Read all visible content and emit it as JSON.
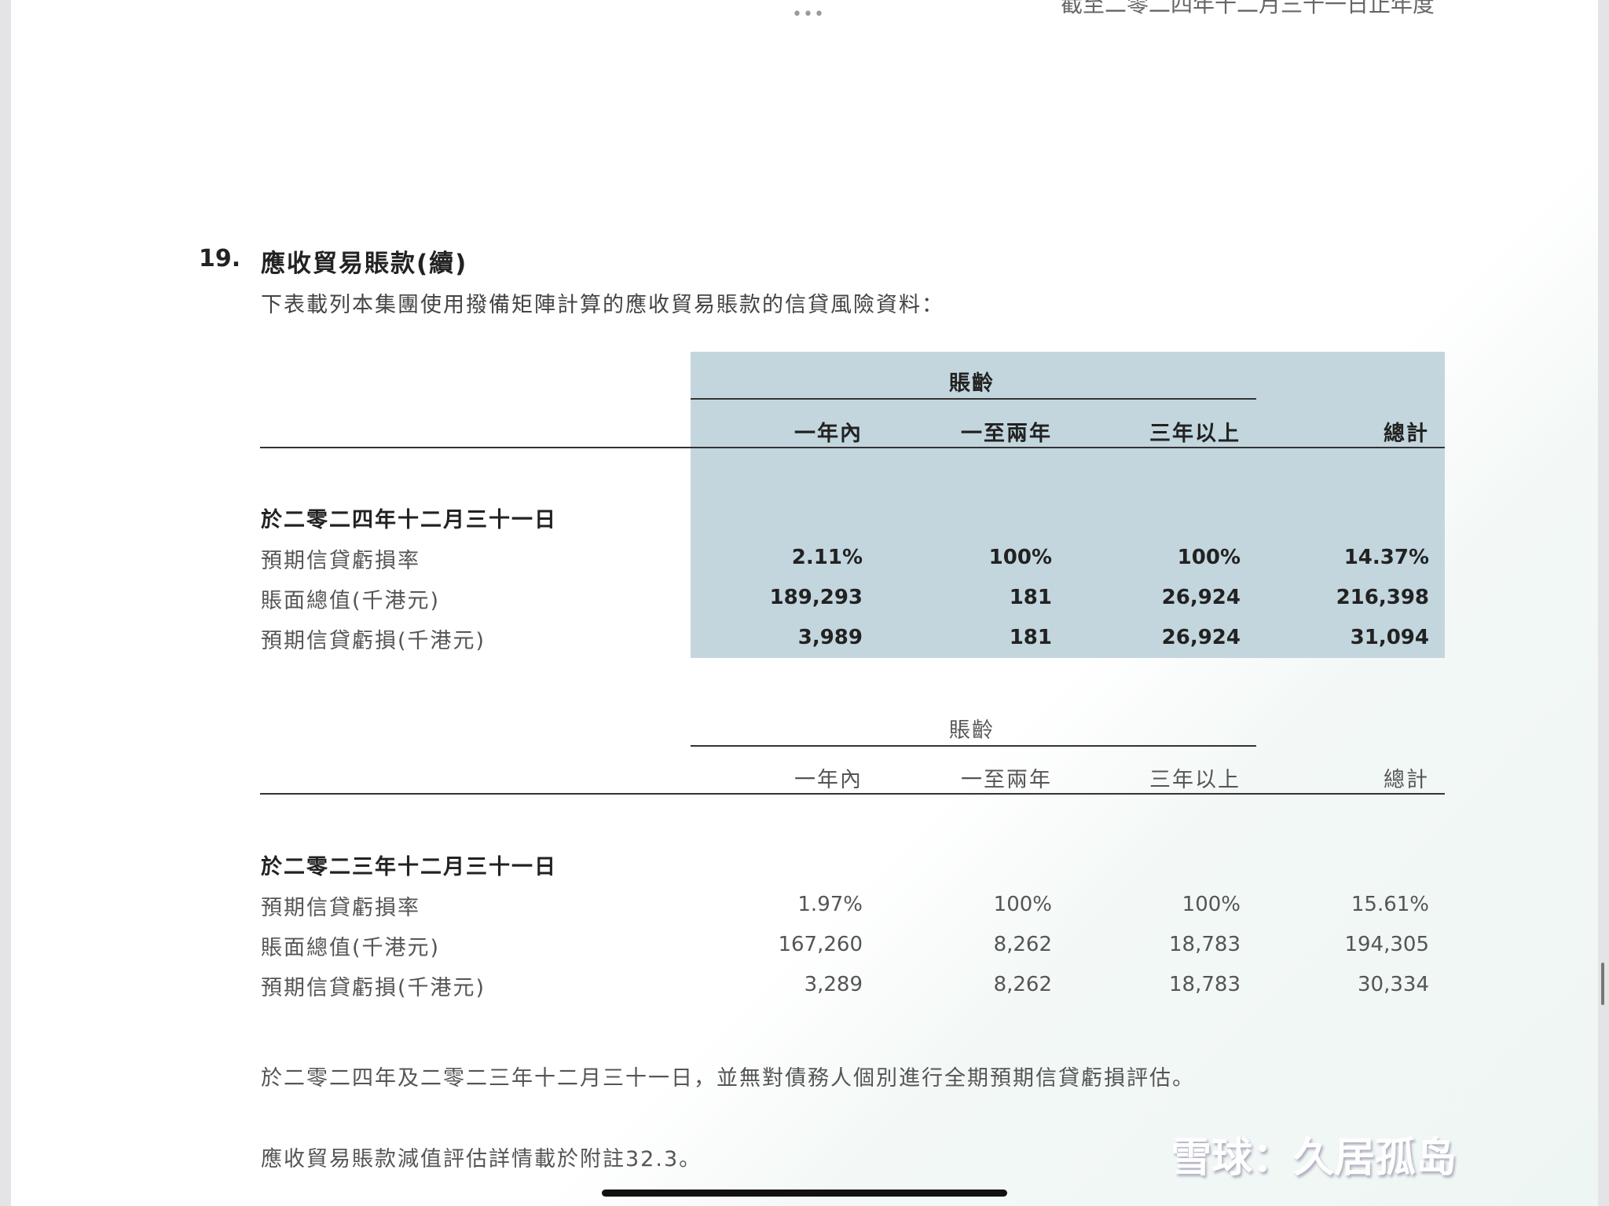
{
  "header": {
    "top_text": "截至二零二四年十二月三十一日止年度",
    "menu_dots": "•••"
  },
  "section": {
    "number": "19.",
    "title": "應收貿易賬款(續)",
    "intro": "下表載列本集團使用撥備矩陣計算的應收貿易賬款的信貸風險資料："
  },
  "table_2024": {
    "group_header": "賬齡",
    "columns": [
      "一年內",
      "一至兩年",
      "三年以上",
      "總計"
    ],
    "date_label": "於二零二四年十二月三十一日",
    "rows": [
      {
        "label": "預期信貸虧損率",
        "values": [
          "2.11%",
          "100%",
          "100%",
          "14.37%"
        ]
      },
      {
        "label": "賬面總值(千港元)",
        "values": [
          "189,293",
          "181",
          "26,924",
          "216,398"
        ]
      },
      {
        "label": "預期信貸虧損(千港元)",
        "values": [
          "3,989",
          "181",
          "26,924",
          "31,094"
        ]
      }
    ],
    "highlight_color": "#c3d6de"
  },
  "table_2023": {
    "group_header": "賬齡",
    "columns": [
      "一年內",
      "一至兩年",
      "三年以上",
      "總計"
    ],
    "date_label": "於二零二三年十二月三十一日",
    "rows": [
      {
        "label": "預期信貸虧損率",
        "values": [
          "1.97%",
          "100%",
          "100%",
          "15.61%"
        ]
      },
      {
        "label": "賬面總值(千港元)",
        "values": [
          "167,260",
          "8,262",
          "18,783",
          "194,305"
        ]
      },
      {
        "label": "預期信貸虧損(千港元)",
        "values": [
          "3,289",
          "8,262",
          "18,783",
          "30,334"
        ]
      }
    ]
  },
  "notes": {
    "note1": "於二零二四年及二零二三年十二月三十一日，並無對債務人個別進行全期預期信貸虧損評估。",
    "note2": "應收貿易賬款減值評估詳情載於附註32.3。"
  },
  "watermark": {
    "text": "雪球：久居孤岛"
  }
}
